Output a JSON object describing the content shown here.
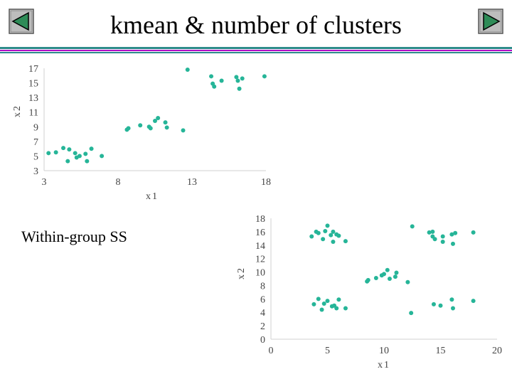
{
  "slide": {
    "title": "kmean & number of clusters",
    "subtitle": "Within-group SS",
    "nav": {
      "prev_icon": "triangle-left-icon",
      "next_icon": "triangle-right-icon"
    }
  },
  "colors": {
    "point": "#26b598",
    "bar_teal": "#2e8b8b",
    "bar_magenta": "#b000c8",
    "nav_fill": "#2e8b57"
  },
  "chart_data": [
    {
      "type": "scatter",
      "xlabel": "x1",
      "ylabel": "x2",
      "xlim": [
        3,
        18
      ],
      "ylim": [
        3,
        17
      ],
      "xticks": [
        "3",
        "8",
        "13",
        "18"
      ],
      "yticks": [
        "17",
        "15",
        "13",
        "11",
        "9",
        "7",
        "5",
        "3"
      ],
      "x": [
        3.3,
        3.8,
        4.3,
        4.7,
        5.1,
        5.4,
        5.8,
        6.2,
        6.9,
        4.6,
        5.2,
        5.9,
        8.6,
        8.7,
        9.5,
        10.1,
        10.2,
        10.5,
        10.7,
        11.2,
        11.3,
        12.4,
        12.7,
        14.3,
        14.4,
        14.5,
        15.0,
        16.1,
        16.2,
        16.4,
        17.9,
        16.0
      ],
      "y": [
        5.4,
        5.5,
        6.1,
        5.9,
        5.4,
        5.0,
        5.3,
        6.0,
        5.0,
        4.3,
        4.8,
        4.3,
        8.6,
        8.8,
        9.2,
        9.0,
        8.8,
        9.8,
        10.2,
        9.6,
        8.9,
        8.5,
        16.8,
        15.9,
        14.9,
        14.5,
        15.3,
        15.3,
        14.2,
        15.6,
        15.9,
        15.8
      ]
    },
    {
      "type": "scatter",
      "xlabel": "x1",
      "ylabel": "x2",
      "xlim": [
        0,
        20
      ],
      "ylim": [
        0,
        18
      ],
      "xticks": [
        "0",
        "5",
        "10",
        "15",
        "20"
      ],
      "yticks": [
        "18",
        "16",
        "14",
        "12",
        "10",
        "8",
        "6",
        "4",
        "2",
        "0"
      ],
      "x": [
        3.6,
        4.0,
        4.2,
        4.8,
        5.0,
        5.3,
        5.5,
        5.8,
        6.0,
        4.6,
        5.5,
        6.6,
        3.8,
        4.2,
        4.7,
        5.0,
        5.4,
        5.6,
        5.8,
        6.0,
        6.6,
        4.5,
        8.5,
        8.6,
        9.3,
        9.8,
        10.0,
        10.3,
        10.5,
        11.0,
        11.1,
        12.1,
        12.5,
        12.4,
        14.0,
        14.3,
        14.5,
        15.2,
        14.3,
        15.2,
        16.0,
        16.1,
        16.3,
        17.9,
        14.4,
        15.0,
        16.0,
        16.1,
        17.9
      ],
      "y": [
        15.3,
        16.0,
        15.8,
        16.1,
        16.9,
        15.5,
        16.0,
        15.6,
        15.4,
        14.9,
        14.5,
        14.6,
        5.2,
        6.0,
        5.3,
        5.7,
        4.9,
        5.0,
        4.6,
        5.9,
        4.6,
        4.4,
        8.6,
        8.8,
        9.1,
        9.5,
        9.7,
        10.3,
        9.0,
        9.3,
        9.9,
        8.5,
        16.8,
        3.9,
        15.9,
        16.0,
        14.9,
        14.5,
        15.3,
        15.3,
        15.6,
        14.2,
        15.8,
        15.9,
        5.2,
        5.0,
        5.9,
        4.6,
        5.7
      ]
    }
  ]
}
